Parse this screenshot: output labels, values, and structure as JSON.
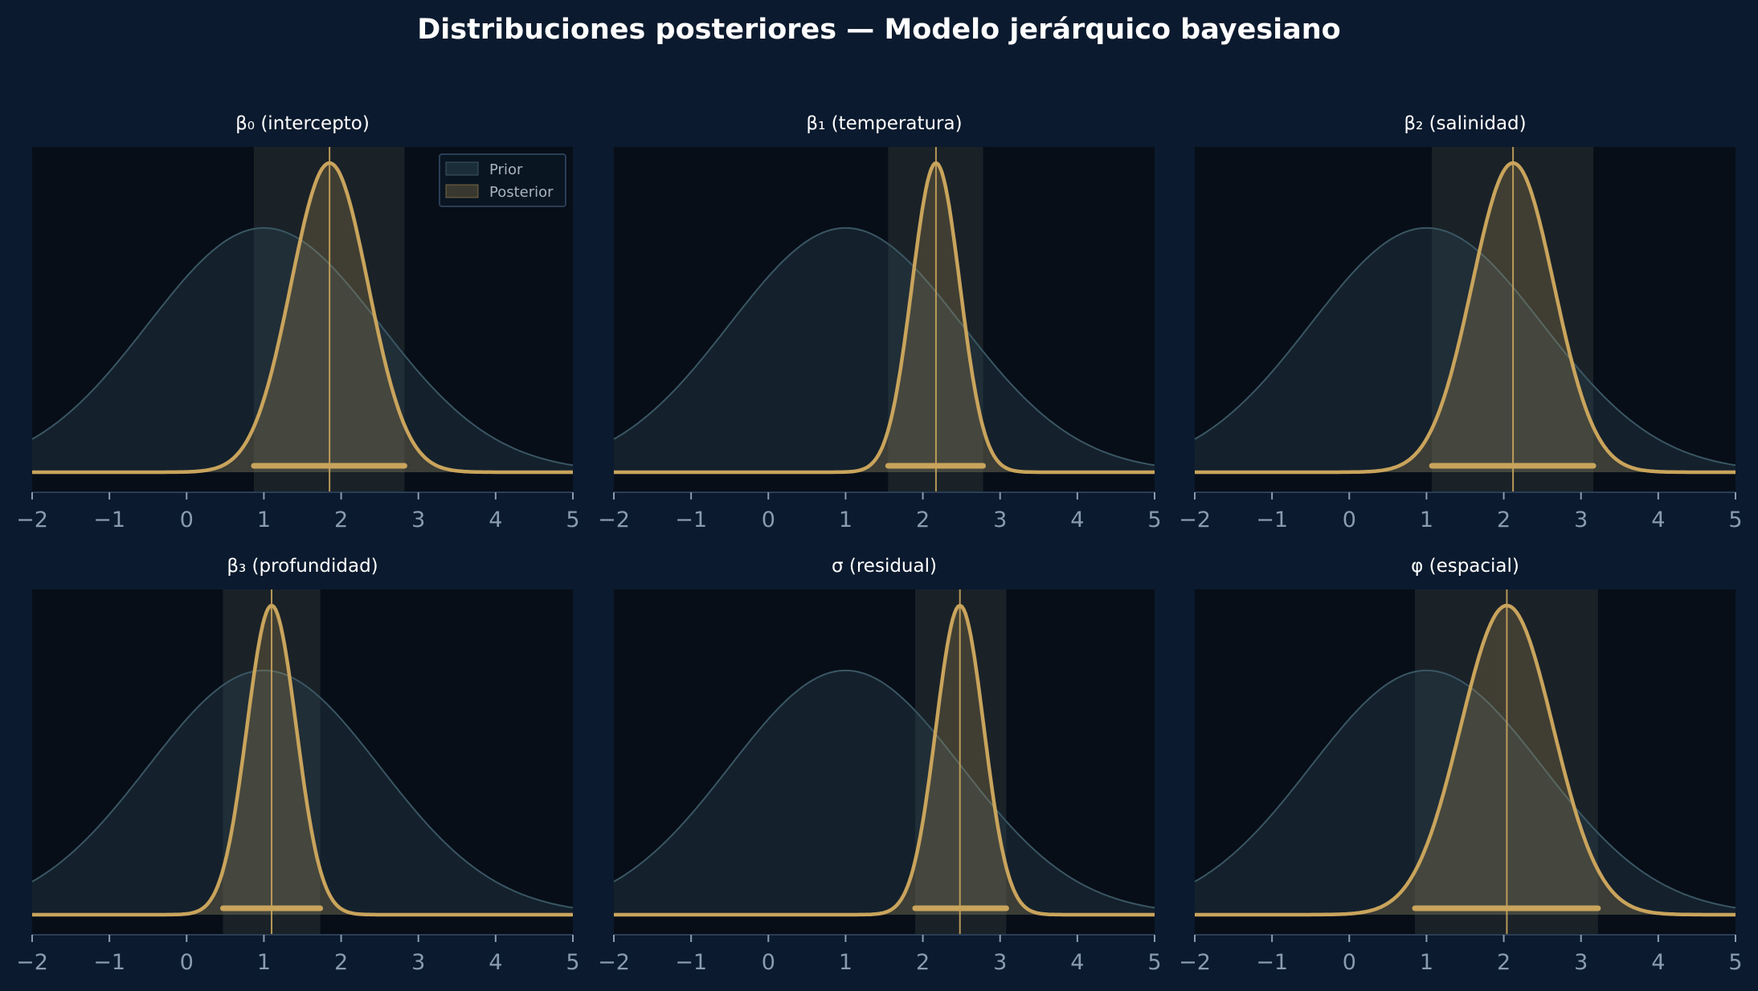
{
  "figure": {
    "title": "Distribuciones posteriores — Modelo jerárquico bayesiano",
    "background": "#0b1a2e",
    "panel_background": "#070e18"
  },
  "colors": {
    "prior_fill": "#2e4552",
    "prior_line": "#3a5663",
    "posterior_line": "#c9a45c",
    "posterior_fill": "#c9a45c",
    "hdi_band": "#1a2228",
    "tick_color": "#8a9bb0",
    "axis_color": "#2a3d55"
  },
  "legend": {
    "location": "top-right (first panel only)",
    "prior_label": "Prior",
    "posterior_label": "Posterior"
  },
  "chart_data": [
    {
      "type": "area",
      "title": "β₀ (intercepto)",
      "xlim": [
        -2,
        5
      ],
      "xticks": [
        -2,
        -1,
        0,
        1,
        2,
        3,
        4,
        5
      ],
      "xtick_labels": [
        "−2",
        "−1",
        "0",
        "1",
        "2",
        "3",
        "4",
        "5"
      ],
      "prior": {
        "mean": 1.0,
        "sd": 1.5,
        "relative_peak": 0.79
      },
      "posterior": {
        "mean": 1.85,
        "sd": 0.5,
        "relative_peak": 1.0
      },
      "hdi": [
        0.87,
        2.82
      ]
    },
    {
      "type": "area",
      "title": "β₁ (temperatura)",
      "xlim": [
        -2,
        5
      ],
      "xticks": [
        -2,
        -1,
        0,
        1,
        2,
        3,
        4,
        5
      ],
      "xtick_labels": [
        "−2",
        "−1",
        "0",
        "1",
        "2",
        "3",
        "4",
        "5"
      ],
      "prior": {
        "mean": 1.0,
        "sd": 1.5,
        "relative_peak": 0.79
      },
      "posterior": {
        "mean": 2.17,
        "sd": 0.31,
        "relative_peak": 1.0
      },
      "hdi": [
        1.55,
        2.78
      ]
    },
    {
      "type": "area",
      "title": "β₂ (salinidad)",
      "xlim": [
        -2,
        5
      ],
      "xticks": [
        -2,
        -1,
        0,
        1,
        2,
        3,
        4,
        5
      ],
      "xtick_labels": [
        "−2",
        "−1",
        "0",
        "1",
        "2",
        "3",
        "4",
        "5"
      ],
      "prior": {
        "mean": 1.0,
        "sd": 1.5,
        "relative_peak": 0.79
      },
      "posterior": {
        "mean": 2.12,
        "sd": 0.53,
        "relative_peak": 1.0
      },
      "hdi": [
        1.07,
        3.16
      ]
    },
    {
      "type": "area",
      "title": "β₃ (profundidad)",
      "xlim": [
        -2,
        5
      ],
      "xticks": [
        -2,
        -1,
        0,
        1,
        2,
        3,
        4,
        5
      ],
      "xtick_labels": [
        "−2",
        "−1",
        "0",
        "1",
        "2",
        "3",
        "4",
        "5"
      ],
      "prior": {
        "mean": 1.0,
        "sd": 1.5,
        "relative_peak": 0.79
      },
      "posterior": {
        "mean": 1.1,
        "sd": 0.32,
        "relative_peak": 1.0
      },
      "hdi": [
        0.47,
        1.73
      ]
    },
    {
      "type": "area",
      "title": "σ (residual)",
      "xlim": [
        -2,
        5
      ],
      "xticks": [
        -2,
        -1,
        0,
        1,
        2,
        3,
        4,
        5
      ],
      "xtick_labels": [
        "−2",
        "−1",
        "0",
        "1",
        "2",
        "3",
        "4",
        "5"
      ],
      "prior": {
        "mean": 1.0,
        "sd": 1.5,
        "relative_peak": 0.79
      },
      "posterior": {
        "mean": 2.48,
        "sd": 0.31,
        "relative_peak": 1.0
      },
      "hdi": [
        1.9,
        3.08
      ]
    },
    {
      "type": "area",
      "title": "φ (espacial)",
      "xlim": [
        -2,
        5
      ],
      "xticks": [
        -2,
        -1,
        0,
        1,
        2,
        3,
        4,
        5
      ],
      "xtick_labels": [
        "−2",
        "−1",
        "0",
        "1",
        "2",
        "3",
        "4",
        "5"
      ],
      "prior": {
        "mean": 1.0,
        "sd": 1.5,
        "relative_peak": 0.79
      },
      "posterior": {
        "mean": 2.04,
        "sd": 0.6,
        "relative_peak": 1.0
      },
      "hdi": [
        0.85,
        3.22
      ]
    }
  ]
}
